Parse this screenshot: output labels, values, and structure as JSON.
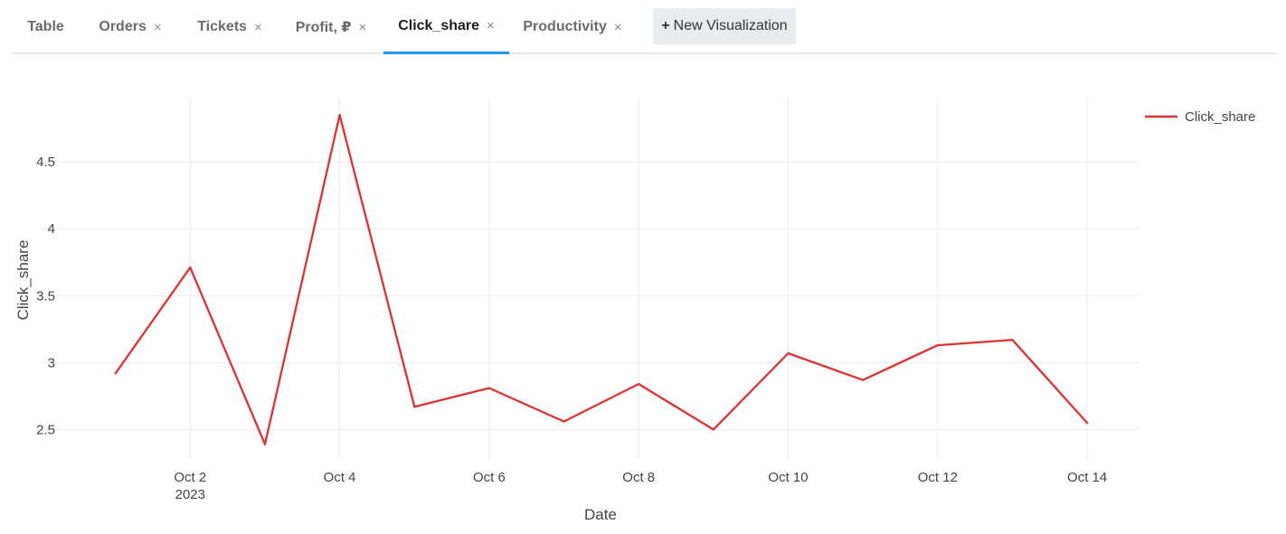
{
  "tabs": [
    {
      "label": "Table",
      "closable": false,
      "active": false
    },
    {
      "label": "Orders",
      "closable": true,
      "active": false
    },
    {
      "label": "Tickets",
      "closable": true,
      "active": false
    },
    {
      "label": "Profit, ₽",
      "closable": true,
      "active": false
    },
    {
      "label": "Click_share",
      "closable": true,
      "active": true
    },
    {
      "label": "Productivity",
      "closable": true,
      "active": false
    }
  ],
  "close_glyph": "×",
  "new_visualization": {
    "icon": "+",
    "label": "New Visualization"
  },
  "chart_data": {
    "type": "line",
    "xlabel": "Date",
    "ylabel": "Click_share",
    "x": [
      "2023-10-01",
      "2023-10-02",
      "2023-10-03",
      "2023-10-04",
      "2023-10-05",
      "2023-10-06",
      "2023-10-07",
      "2023-10-08",
      "2023-10-09",
      "2023-10-10",
      "2023-10-11",
      "2023-10-12",
      "2023-10-13",
      "2023-10-14"
    ],
    "series": [
      {
        "name": "Click_share",
        "color": "#e03030",
        "values": [
          2.92,
          3.71,
          2.39,
          4.85,
          2.67,
          2.81,
          2.56,
          2.84,
          2.5,
          3.07,
          2.87,
          3.13,
          3.17,
          2.55
        ]
      }
    ],
    "x_ticks": [
      {
        "date": "2023-10-02",
        "label": "Oct 2",
        "sublabel": "2023"
      },
      {
        "date": "2023-10-04",
        "label": "Oct 4"
      },
      {
        "date": "2023-10-06",
        "label": "Oct 6"
      },
      {
        "date": "2023-10-08",
        "label": "Oct 8"
      },
      {
        "date": "2023-10-10",
        "label": "Oct 10"
      },
      {
        "date": "2023-10-12",
        "label": "Oct 12"
      },
      {
        "date": "2023-10-14",
        "label": "Oct 14"
      }
    ],
    "y_ticks": [
      {
        "value": 2.5,
        "label": "2.5"
      },
      {
        "value": 3,
        "label": "3"
      },
      {
        "value": 3.5,
        "label": "3.5"
      },
      {
        "value": 4,
        "label": "4"
      },
      {
        "value": 4.5,
        "label": "4.5"
      }
    ],
    "xlim": [
      "2023-09-30",
      "2023-10-14.7"
    ],
    "ylim": [
      2.28,
      4.98
    ],
    "grid": true,
    "legend": "top-right"
  }
}
